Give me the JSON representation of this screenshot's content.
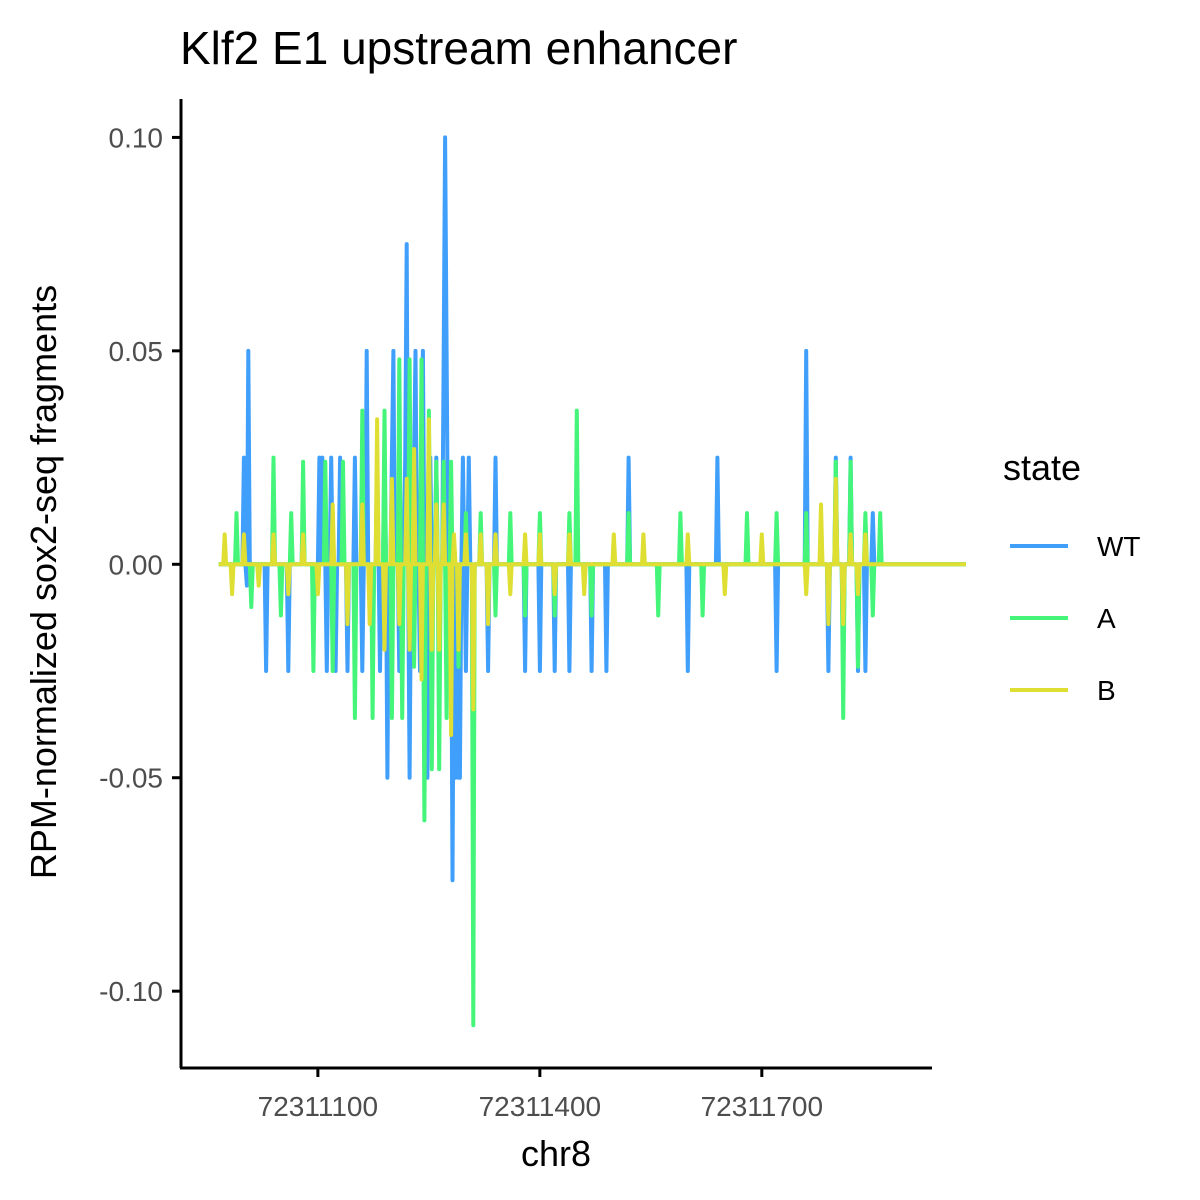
{
  "chart_data": {
    "type": "line",
    "title": "Klf2 E1 upstream enhancer",
    "xlabel": "chr8",
    "ylabel": "RPM-normalized sox2-seq fragments",
    "xlim": [
      72310915,
      72311930
    ],
    "ylim": [
      -0.118,
      0.109
    ],
    "x_ticks": [
      72311100,
      72311400,
      72311700
    ],
    "x_tick_labels": [
      "72311100",
      "72311400",
      "72311700"
    ],
    "y_ticks": [
      0.1,
      0.05,
      0.0,
      -0.05,
      -0.1
    ],
    "y_tick_labels": [
      "0.10",
      "0.05",
      "0.00",
      "-0.05",
      "-0.10"
    ],
    "grid": false,
    "legend_title": "state",
    "legend_position": "right",
    "x_step": 2,
    "series": [
      {
        "name": "WT",
        "color": "#3f9ffa",
        "x_start": 72310966,
        "x_end": 72311976,
        "spikes": [
          [
            72311000,
            0.025
          ],
          [
            72311005,
            -0.005
          ],
          [
            72311006,
            0.05
          ],
          [
            72311030,
            -0.025
          ],
          [
            72311060,
            -0.025
          ],
          [
            72311080,
            0.012
          ],
          [
            72311102,
            0.025
          ],
          [
            72311103,
            -0.05
          ],
          [
            72311106,
            0.025
          ],
          [
            72311112,
            -0.025
          ],
          [
            72311118,
            0.025
          ],
          [
            72311125,
            -0.025
          ],
          [
            72311130,
            0.025
          ],
          [
            72311140,
            -0.025
          ],
          [
            72311150,
            0.025
          ],
          [
            72311160,
            -0.025
          ],
          [
            72311166,
            0.05
          ],
          [
            72311175,
            -0.025
          ],
          [
            72311180,
            0.025
          ],
          [
            72311185,
            -0.025
          ],
          [
            72311190,
            0.025
          ],
          [
            72311195,
            -0.05
          ],
          [
            72311200,
            0.025
          ],
          [
            72311203,
            0.05
          ],
          [
            72311210,
            -0.025
          ],
          [
            72311218,
            0.025
          ],
          [
            72311220,
            0.075
          ],
          [
            72311225,
            -0.05
          ],
          [
            72311230,
            0.025
          ],
          [
            72311233,
            0.05
          ],
          [
            72311238,
            -0.025
          ],
          [
            72311242,
            0.05
          ],
          [
            72311248,
            -0.05
          ],
          [
            72311252,
            0.025
          ],
          [
            72311260,
            0.025
          ],
          [
            72311265,
            -0.025
          ],
          [
            72311270,
            0.05
          ],
          [
            72311272,
            0.1
          ],
          [
            72311275,
            0.05
          ],
          [
            72311278,
            -0.025
          ],
          [
            72311282,
            -0.074
          ],
          [
            72311286,
            -0.05
          ],
          [
            72311290,
            -0.05
          ],
          [
            72311292,
            -0.05
          ],
          [
            72311296,
            0.025
          ],
          [
            72311300,
            -0.025
          ],
          [
            72311305,
            0.025
          ],
          [
            72311310,
            -0.025
          ],
          [
            72311330,
            -0.025
          ],
          [
            72311340,
            0.025
          ],
          [
            72311380,
            -0.025
          ],
          [
            72311400,
            -0.025
          ],
          [
            72311420,
            -0.025
          ],
          [
            72311440,
            -0.025
          ],
          [
            72311470,
            -0.025
          ],
          [
            72311490,
            -0.025
          ],
          [
            72311520,
            0.025
          ],
          [
            72311600,
            -0.025
          ],
          [
            72311640,
            0.025
          ],
          [
            72311720,
            -0.025
          ],
          [
            72311760,
            0.05
          ],
          [
            72311790,
            -0.025
          ],
          [
            72311800,
            0.025
          ],
          [
            72311810,
            -0.025
          ],
          [
            72311820,
            0.025
          ],
          [
            72311830,
            -0.025
          ],
          [
            72311840,
            -0.025
          ],
          [
            72311850,
            0.012
          ]
        ]
      },
      {
        "name": "A",
        "color": "#44f57a",
        "x_start": 72310966,
        "x_end": 72311976,
        "spikes": [
          [
            72310990,
            0.012
          ],
          [
            72311010,
            -0.01
          ],
          [
            72311040,
            0.025
          ],
          [
            72311050,
            -0.012
          ],
          [
            72311065,
            0.012
          ],
          [
            72311080,
            0.024
          ],
          [
            72311095,
            -0.025
          ],
          [
            72311110,
            0.024
          ],
          [
            72311120,
            -0.025
          ],
          [
            72311135,
            0.024
          ],
          [
            72311150,
            -0.036
          ],
          [
            72311160,
            0.036
          ],
          [
            72311175,
            -0.036
          ],
          [
            72311190,
            0.036
          ],
          [
            72311200,
            -0.036
          ],
          [
            72311210,
            0.048
          ],
          [
            72311215,
            -0.036
          ],
          [
            72311225,
            0.048
          ],
          [
            72311230,
            -0.024
          ],
          [
            72311240,
            0.048
          ],
          [
            72311245,
            -0.06
          ],
          [
            72311250,
            0.036
          ],
          [
            72311255,
            -0.048
          ],
          [
            72311260,
            0.024
          ],
          [
            72311265,
            -0.048
          ],
          [
            72311270,
            0.024
          ],
          [
            72311275,
            -0.036
          ],
          [
            72311280,
            0.024
          ],
          [
            72311290,
            -0.024
          ],
          [
            72311300,
            0.012
          ],
          [
            72311310,
            -0.108
          ],
          [
            72311320,
            0.012
          ],
          [
            72311340,
            -0.012
          ],
          [
            72311360,
            0.012
          ],
          [
            72311380,
            -0.012
          ],
          [
            72311400,
            0.012
          ],
          [
            72311420,
            -0.012
          ],
          [
            72311440,
            0.012
          ],
          [
            72311450,
            0.036
          ],
          [
            72311470,
            -0.012
          ],
          [
            72311520,
            0.012
          ],
          [
            72311560,
            -0.012
          ],
          [
            72311590,
            0.012
          ],
          [
            72311620,
            -0.012
          ],
          [
            72311680,
            0.012
          ],
          [
            72311720,
            0.012
          ],
          [
            72311760,
            0.012
          ],
          [
            72311790,
            -0.012
          ],
          [
            72311800,
            0.024
          ],
          [
            72311810,
            -0.036
          ],
          [
            72311820,
            0.024
          ],
          [
            72311830,
            -0.024
          ],
          [
            72311840,
            0.012
          ],
          [
            72311850,
            -0.012
          ],
          [
            72311860,
            0.012
          ]
        ]
      },
      {
        "name": "B",
        "color": "#dede33",
        "x_start": 72310966,
        "x_end": 72311976,
        "spikes": [
          [
            72310975,
            0.007
          ],
          [
            72310985,
            -0.007
          ],
          [
            72311000,
            0.007
          ],
          [
            72311020,
            -0.005
          ],
          [
            72311040,
            0.007
          ],
          [
            72311060,
            -0.007
          ],
          [
            72311080,
            0.007
          ],
          [
            72311100,
            -0.007
          ],
          [
            72311120,
            0.014
          ],
          [
            72311140,
            -0.014
          ],
          [
            72311160,
            0.014
          ],
          [
            72311170,
            -0.014
          ],
          [
            72311180,
            0.034
          ],
          [
            72311190,
            -0.02
          ],
          [
            72311200,
            0.02
          ],
          [
            72311210,
            -0.014
          ],
          [
            72311220,
            0.02
          ],
          [
            72311225,
            -0.02
          ],
          [
            72311230,
            0.027
          ],
          [
            72311240,
            -0.027
          ],
          [
            72311250,
            0.034
          ],
          [
            72311255,
            -0.02
          ],
          [
            72311260,
            0.014
          ],
          [
            72311265,
            -0.02
          ],
          [
            72311270,
            0.014
          ],
          [
            72311280,
            -0.04
          ],
          [
            72311285,
            0.007
          ],
          [
            72311290,
            -0.02
          ],
          [
            72311300,
            0.007
          ],
          [
            72311310,
            -0.034
          ],
          [
            72311320,
            0.007
          ],
          [
            72311330,
            -0.014
          ],
          [
            72311340,
            0.007
          ],
          [
            72311360,
            -0.007
          ],
          [
            72311380,
            0.007
          ],
          [
            72311400,
            0.007
          ],
          [
            72311420,
            -0.007
          ],
          [
            72311440,
            0.007
          ],
          [
            72311460,
            -0.007
          ],
          [
            72311500,
            0.007
          ],
          [
            72311540,
            0.007
          ],
          [
            72311600,
            0.007
          ],
          [
            72311650,
            -0.007
          ],
          [
            72311700,
            0.007
          ],
          [
            72311760,
            -0.007
          ],
          [
            72311780,
            0.014
          ],
          [
            72311790,
            -0.014
          ],
          [
            72311800,
            0.02
          ],
          [
            72311810,
            -0.014
          ],
          [
            72311820,
            0.007
          ],
          [
            72311830,
            -0.007
          ],
          [
            72311840,
            0.007
          ]
        ]
      }
    ]
  }
}
